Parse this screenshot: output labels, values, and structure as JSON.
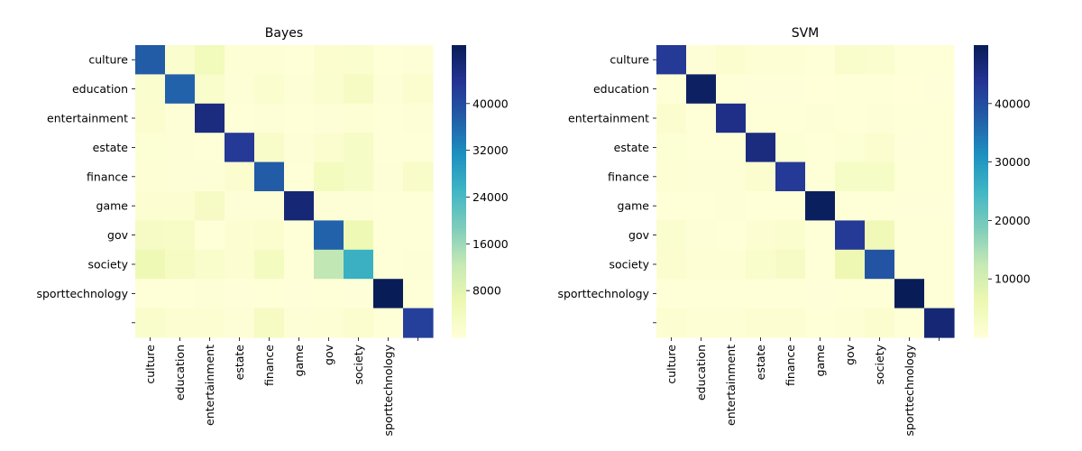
{
  "chart_data": [
    {
      "type": "heatmap",
      "title": "Bayes",
      "row_labels": [
        "culture",
        "education",
        "entertainment",
        "estate",
        "finance",
        "game",
        "gov",
        "society",
        "sporttechnology",
        ""
      ],
      "col_labels": [
        "culture",
        "education",
        "entertainment",
        "estate",
        "finance",
        "game",
        "gov",
        "society",
        "sporttechnology",
        ""
      ],
      "values": [
        [
          38000,
          1800,
          4500,
          800,
          800,
          300,
          1500,
          1800,
          400,
          500
        ],
        [
          1800,
          37000,
          2200,
          700,
          1800,
          500,
          1800,
          3500,
          700,
          1500
        ],
        [
          1500,
          500,
          46000,
          300,
          700,
          300,
          500,
          800,
          400,
          500
        ],
        [
          1000,
          500,
          300,
          43000,
          2500,
          500,
          1500,
          3000,
          300,
          400
        ],
        [
          800,
          600,
          500,
          1500,
          38000,
          300,
          4000,
          3000,
          700,
          2500
        ],
        [
          1200,
          1200,
          3200,
          500,
          500,
          47000,
          500,
          500,
          300,
          300
        ],
        [
          3200,
          2800,
          300,
          1200,
          1500,
          300,
          37000,
          5500,
          400,
          400
        ],
        [
          5500,
          3500,
          2200,
          1200,
          3800,
          300,
          13000,
          26000,
          400,
          500
        ],
        [
          300,
          300,
          500,
          200,
          300,
          200,
          300,
          200,
          50000,
          300
        ],
        [
          2000,
          1200,
          1200,
          600,
          3500,
          700,
          800,
          1500,
          300,
          42000
        ]
      ],
      "colorbar": {
        "min": 0,
        "max": 50000,
        "ticks": [
          8000,
          16000,
          24000,
          32000,
          40000
        ],
        "tick_labels": [
          "8000",
          "16000",
          "24000",
          "32000",
          "40000"
        ]
      },
      "colormap": "YlGnBu"
    },
    {
      "type": "heatmap",
      "title": "SVM",
      "row_labels": [
        "culture",
        "education",
        "entertainment",
        "estate",
        "finance",
        "game",
        "gov",
        "society",
        "sporttechnology",
        ""
      ],
      "col_labels": [
        "culture",
        "education",
        "entertainment",
        "estate",
        "finance",
        "game",
        "gov",
        "society",
        "sporttechnology",
        ""
      ],
      "values": [
        [
          43000,
          500,
          1500,
          800,
          800,
          300,
          2000,
          1800,
          300,
          300
        ],
        [
          300,
          49000,
          300,
          200,
          200,
          100,
          300,
          300,
          100,
          200
        ],
        [
          1500,
          300,
          45000,
          300,
          300,
          500,
          300,
          500,
          300,
          300
        ],
        [
          1000,
          300,
          300,
          46000,
          1000,
          300,
          1000,
          1500,
          200,
          300
        ],
        [
          800,
          500,
          500,
          1500,
          43000,
          300,
          3000,
          3000,
          300,
          400
        ],
        [
          300,
          300,
          500,
          300,
          300,
          49500,
          300,
          300,
          200,
          200
        ],
        [
          1800,
          500,
          300,
          1200,
          1800,
          300,
          43000,
          5000,
          300,
          300
        ],
        [
          1500,
          800,
          800,
          2000,
          3200,
          300,
          6000,
          39000,
          300,
          300
        ],
        [
          300,
          300,
          300,
          300,
          300,
          200,
          300,
          300,
          50000,
          300
        ],
        [
          1200,
          800,
          800,
          1200,
          1200,
          300,
          800,
          1500,
          300,
          47000
        ]
      ],
      "colorbar": {
        "min": 0,
        "max": 50000,
        "ticks": [
          10000,
          20000,
          30000,
          40000
        ],
        "tick_labels": [
          "10000",
          "20000",
          "30000",
          "40000"
        ]
      },
      "colormap": "YlGnBu"
    }
  ]
}
